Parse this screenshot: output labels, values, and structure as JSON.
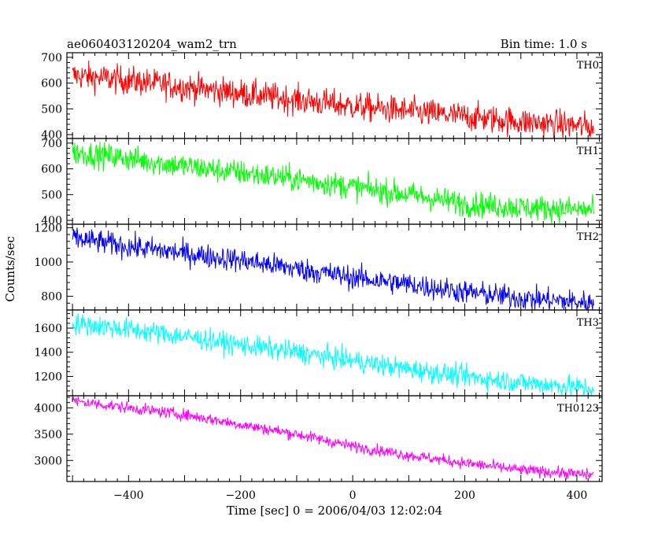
{
  "chart_data": {
    "type": "line",
    "title": "ae060403120204_wam2_trn",
    "bin_time": "Bin time: 1.0 s",
    "xlabel": "Time [sec] 0 = 2006/04/03 12:02:04",
    "ylabel": "Counts/sec",
    "xlim": [
      -510,
      445
    ],
    "x_ticks": [
      -400,
      -200,
      0,
      200,
      400
    ],
    "x_range": [
      -500,
      430
    ],
    "panels": [
      {
        "name": "TH0",
        "color": "#ff0000",
        "ylim": [
          385,
          718
        ],
        "y_ticks": [
          400,
          500,
          600,
          700
        ],
        "trend": [
          [
            -500,
            630
          ],
          [
            -400,
            610
          ],
          [
            -300,
            585
          ],
          [
            -200,
            560
          ],
          [
            -100,
            535
          ],
          [
            0,
            510
          ],
          [
            100,
            490
          ],
          [
            200,
            470
          ],
          [
            300,
            450
          ],
          [
            430,
            430
          ]
        ],
        "noise": 28
      },
      {
        "name": "TH1",
        "color": "#00ff00",
        "ylim": [
          385,
          718
        ],
        "y_ticks": [
          400,
          500,
          600,
          700
        ],
        "trend": [
          [
            -500,
            665
          ],
          [
            -400,
            640
          ],
          [
            -300,
            610
          ],
          [
            -200,
            585
          ],
          [
            -100,
            560
          ],
          [
            0,
            530
          ],
          [
            100,
            500
          ],
          [
            200,
            465
          ],
          [
            300,
            450
          ],
          [
            430,
            440
          ]
        ],
        "noise": 25
      },
      {
        "name": "TH2",
        "color": "#0000ff",
        "ylim": [
          720,
          1220
        ],
        "y_ticks": [
          800,
          1000,
          1200
        ],
        "trend": [
          [
            -500,
            1140
          ],
          [
            -400,
            1090
          ],
          [
            -300,
            1050
          ],
          [
            -200,
            1010
          ],
          [
            -100,
            960
          ],
          [
            0,
            910
          ],
          [
            100,
            870
          ],
          [
            200,
            825
          ],
          [
            300,
            790
          ],
          [
            430,
            760
          ]
        ],
        "noise": 35
      },
      {
        "name": "TH3",
        "color": "#00ffff",
        "ylim": [
          1040,
          1750
        ],
        "y_ticks": [
          1200,
          1400,
          1600
        ],
        "trend": [
          [
            -500,
            1640
          ],
          [
            -400,
            1590
          ],
          [
            -300,
            1530
          ],
          [
            -200,
            1460
          ],
          [
            -100,
            1400
          ],
          [
            0,
            1330
          ],
          [
            100,
            1260
          ],
          [
            200,
            1200
          ],
          [
            300,
            1150
          ],
          [
            430,
            1100
          ]
        ],
        "noise": 45
      },
      {
        "name": "TH0123",
        "color": "#ff00ff",
        "ylim": [
          2600,
          4230
        ],
        "y_ticks": [
          3000,
          3500,
          4000
        ],
        "trend": [
          [
            -500,
            4130
          ],
          [
            -400,
            4000
          ],
          [
            -300,
            3870
          ],
          [
            -200,
            3680
          ],
          [
            -100,
            3500
          ],
          [
            0,
            3270
          ],
          [
            100,
            3100
          ],
          [
            200,
            2950
          ],
          [
            300,
            2820
          ],
          [
            430,
            2720
          ]
        ],
        "noise": 55
      }
    ]
  }
}
